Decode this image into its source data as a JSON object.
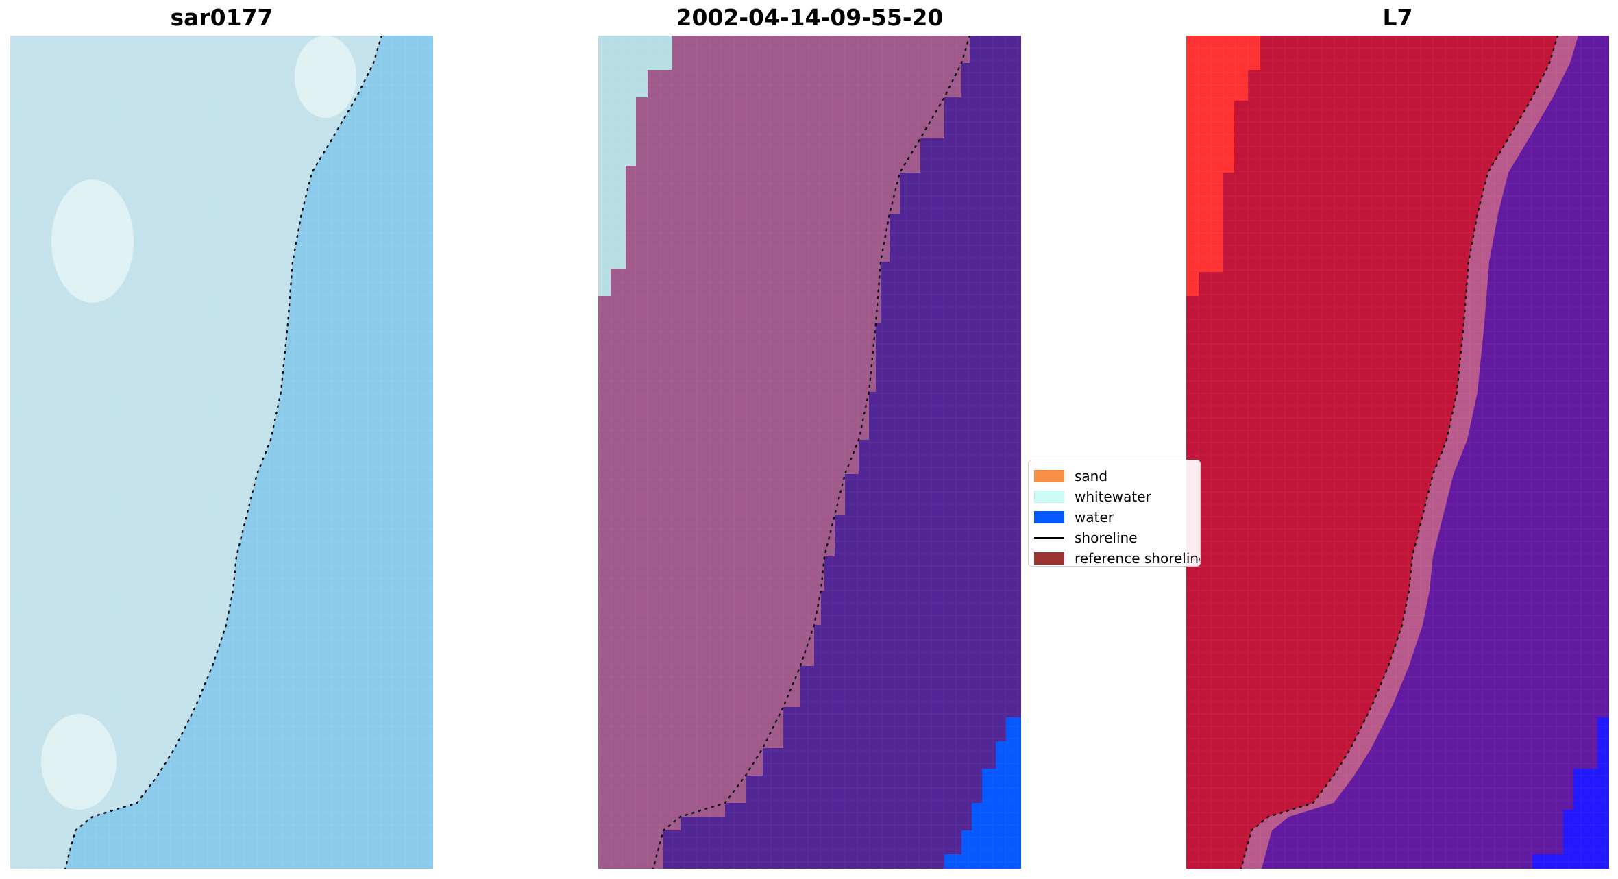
{
  "panels": [
    {
      "id": "rgb",
      "title": "sar0177"
    },
    {
      "id": "classified",
      "title": "2002-04-14-09-55-20"
    },
    {
      "id": "index",
      "title": "L7"
    }
  ],
  "legend": {
    "items": [
      {
        "label": "sand",
        "color": "#f79046"
      },
      {
        "label": "whitewater",
        "color": "#ccfaf5"
      },
      {
        "label": "water",
        "color": "#0658ff"
      },
      {
        "label": "shoreline",
        "color": "#000000"
      },
      {
        "label": "reference shoreline",
        "color": "#9c3434"
      }
    ]
  },
  "colors": {
    "rgb_land": "#c4e2ec",
    "rgb_land_bright": "#e8f6f4",
    "rgb_water": "#8ccaec",
    "class_land": "#a05a8c",
    "class_whitewater": "#b8dde4",
    "class_water": "#522694",
    "class_water_deep": "#0658ff",
    "index_land": "#c2153a",
    "index_land_bright": "#ff3333",
    "index_water": "#621ba0",
    "index_water_deep": "#2219ff",
    "shoreline": "#000000"
  }
}
